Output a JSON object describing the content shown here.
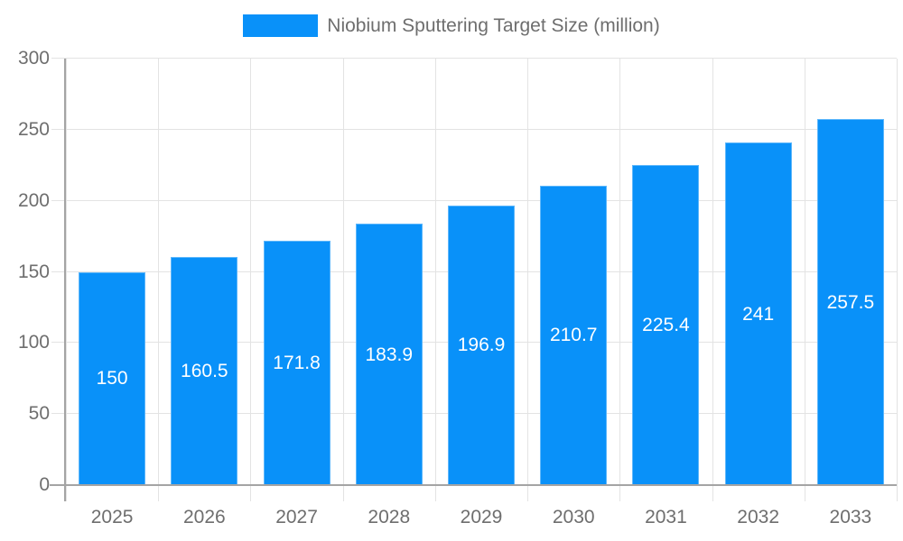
{
  "chart_data": {
    "type": "bar",
    "title": "Niobium Sputtering Target Size (million)",
    "categories": [
      "2025",
      "2026",
      "2027",
      "2028",
      "2029",
      "2030",
      "2031",
      "2032",
      "2033"
    ],
    "values": [
      150,
      160.5,
      171.8,
      183.9,
      196.9,
      210.7,
      225.4,
      241,
      257.5
    ],
    "bar_labels": [
      "150",
      "160.5",
      "171.8",
      "183.9",
      "196.9",
      "210.7",
      "225.4",
      "241",
      "257.5"
    ],
    "xlabel": "",
    "ylabel": "",
    "ylim": [
      0,
      300
    ],
    "yticks": [
      0,
      50,
      100,
      150,
      200,
      250,
      300
    ],
    "grid": true,
    "legend_position": "top-center",
    "colors": {
      "bar": "#0991f9",
      "bar_label": "#ffffff",
      "grid_line": "#e3e3e3",
      "axis_line": "#a4a4a4",
      "axis_text": "#6e6e6e",
      "legend_text": "#6e6e6e",
      "background": "#ffffff"
    }
  }
}
